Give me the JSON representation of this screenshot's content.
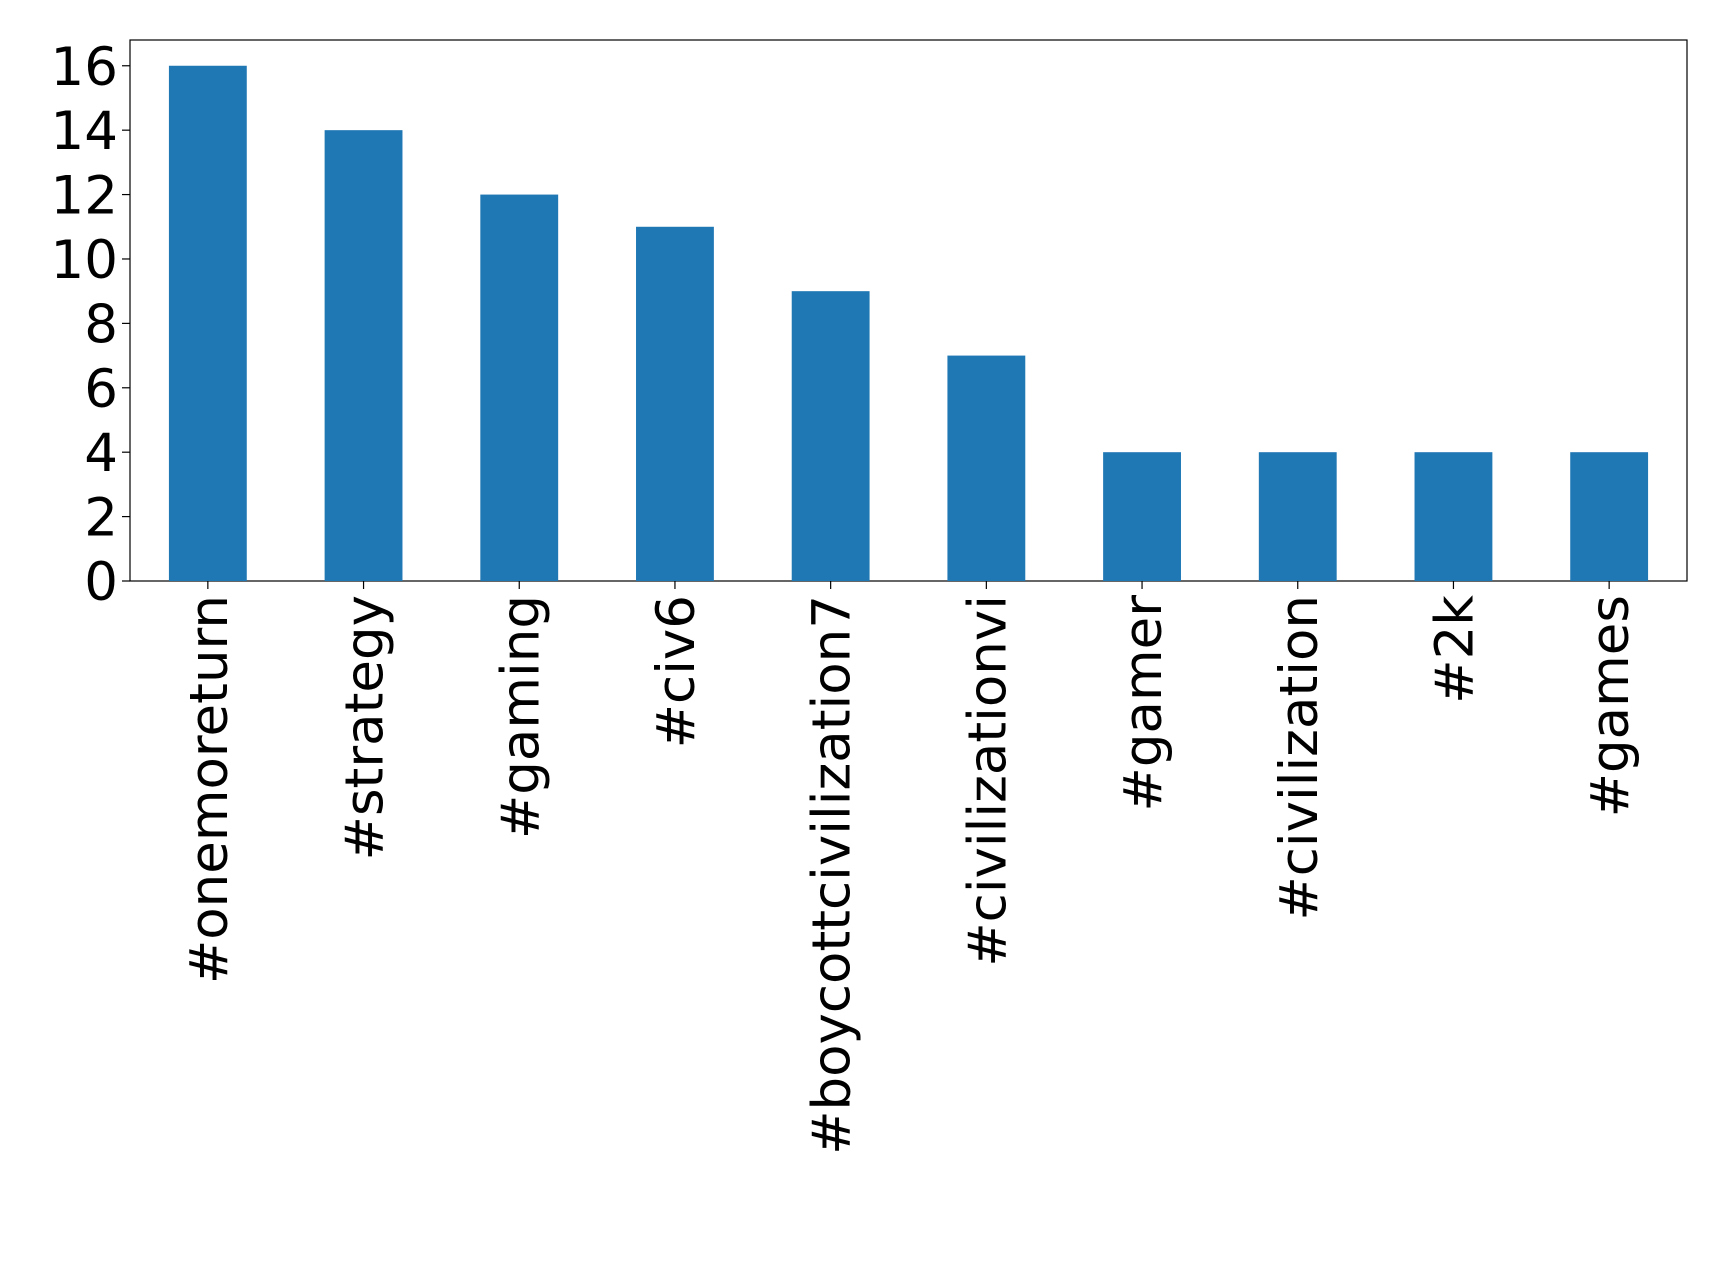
{
  "chart_data": {
    "type": "bar",
    "categories": [
      "#onemoreturn",
      "#strategy",
      "#gaming",
      "#civ6",
      "#boycottcivilization7",
      "#civilizationvi",
      "#gamer",
      "#civilization",
      "#2k",
      "#games"
    ],
    "values": [
      16,
      14,
      12,
      11,
      9,
      7,
      4,
      4,
      4,
      4
    ],
    "color": "#1f77b4",
    "ylim": [
      0,
      16.8
    ],
    "yticks": [
      0,
      2,
      4,
      6,
      8,
      10,
      12,
      14,
      16
    ],
    "grid": false
  }
}
